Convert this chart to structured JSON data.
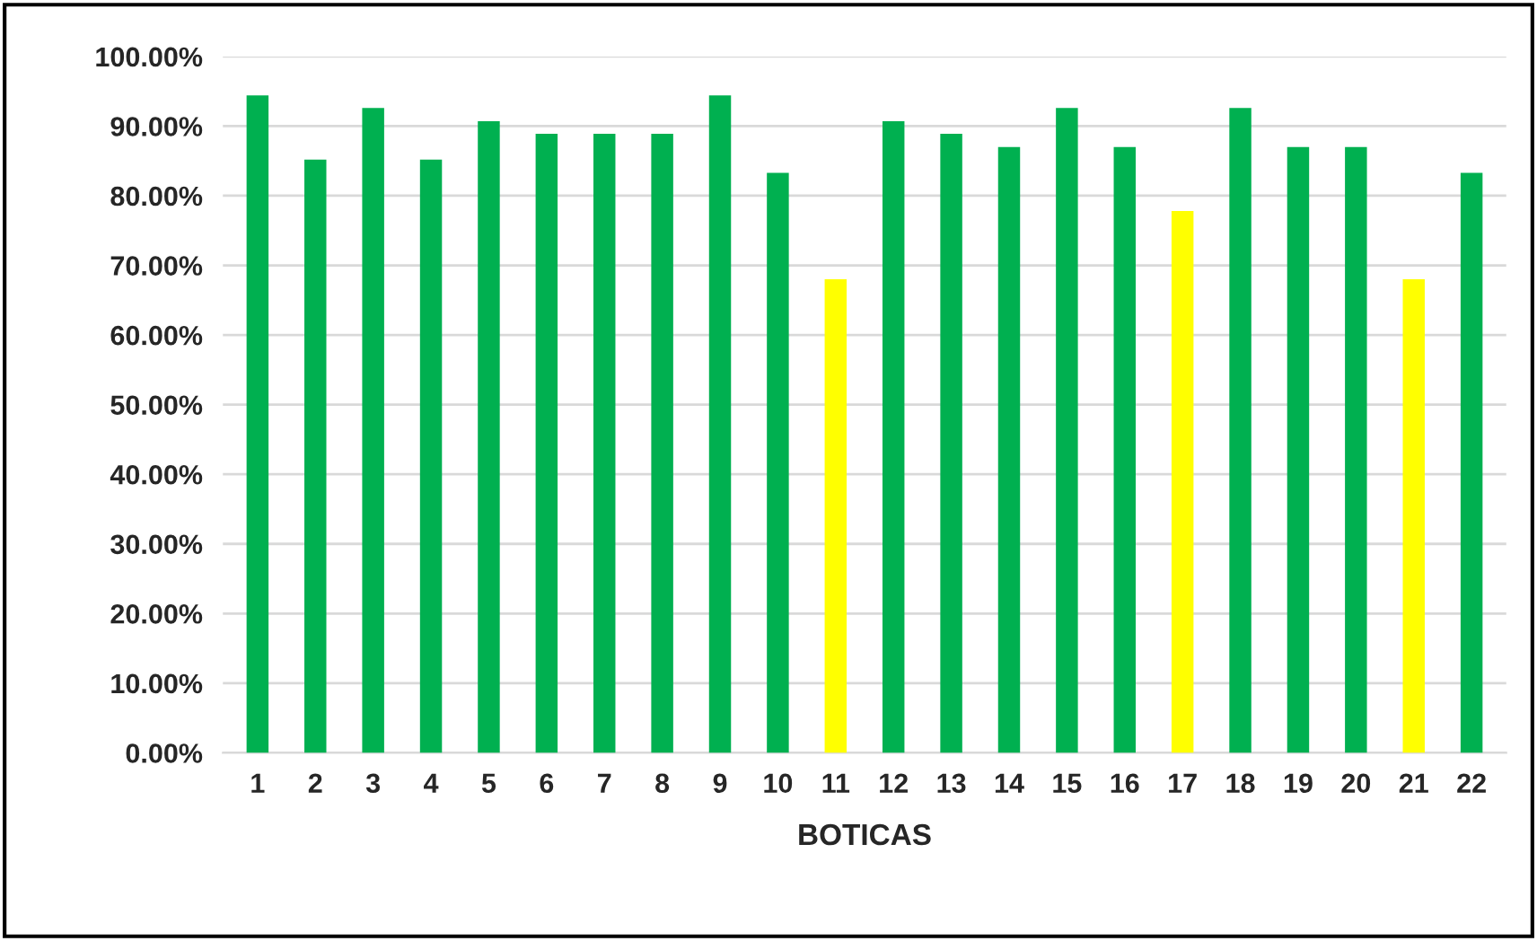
{
  "chart_data": {
    "type": "bar",
    "xlabel": "BOTICAS",
    "categories": [
      "1",
      "2",
      "3",
      "4",
      "5",
      "6",
      "7",
      "8",
      "9",
      "10",
      "11",
      "12",
      "13",
      "14",
      "15",
      "16",
      "17",
      "18",
      "19",
      "20",
      "21",
      "22"
    ],
    "values": [
      94.4,
      85.2,
      92.6,
      85.2,
      90.7,
      88.9,
      88.9,
      88.9,
      94.4,
      83.3,
      68.0,
      90.7,
      88.9,
      87.0,
      92.6,
      87.0,
      77.8,
      92.6,
      87.0,
      87.0,
      68.0,
      83.3
    ],
    "colors": [
      "#00b050",
      "#00b050",
      "#00b050",
      "#00b050",
      "#00b050",
      "#00b050",
      "#00b050",
      "#00b050",
      "#00b050",
      "#00b050",
      "#ffff00",
      "#00b050",
      "#00b050",
      "#00b050",
      "#00b050",
      "#00b050",
      "#ffff00",
      "#00b050",
      "#00b050",
      "#00b050",
      "#ffff00",
      "#00b050"
    ],
    "ylim": [
      0,
      100
    ],
    "yticks": [
      {
        "value": 0,
        "label": "0.00%"
      },
      {
        "value": 10,
        "label": "10.00%"
      },
      {
        "value": 20,
        "label": "20.00%"
      },
      {
        "value": 30,
        "label": "30.00%"
      },
      {
        "value": 40,
        "label": "40.00%"
      },
      {
        "value": 50,
        "label": "50.00%"
      },
      {
        "value": 60,
        "label": "60.00%"
      },
      {
        "value": 70,
        "label": "70.00%"
      },
      {
        "value": 80,
        "label": "80.00%"
      },
      {
        "value": 90,
        "label": "90.00%"
      },
      {
        "value": 100,
        "label": "100.00%"
      }
    ],
    "grid": "y",
    "legend": false
  }
}
